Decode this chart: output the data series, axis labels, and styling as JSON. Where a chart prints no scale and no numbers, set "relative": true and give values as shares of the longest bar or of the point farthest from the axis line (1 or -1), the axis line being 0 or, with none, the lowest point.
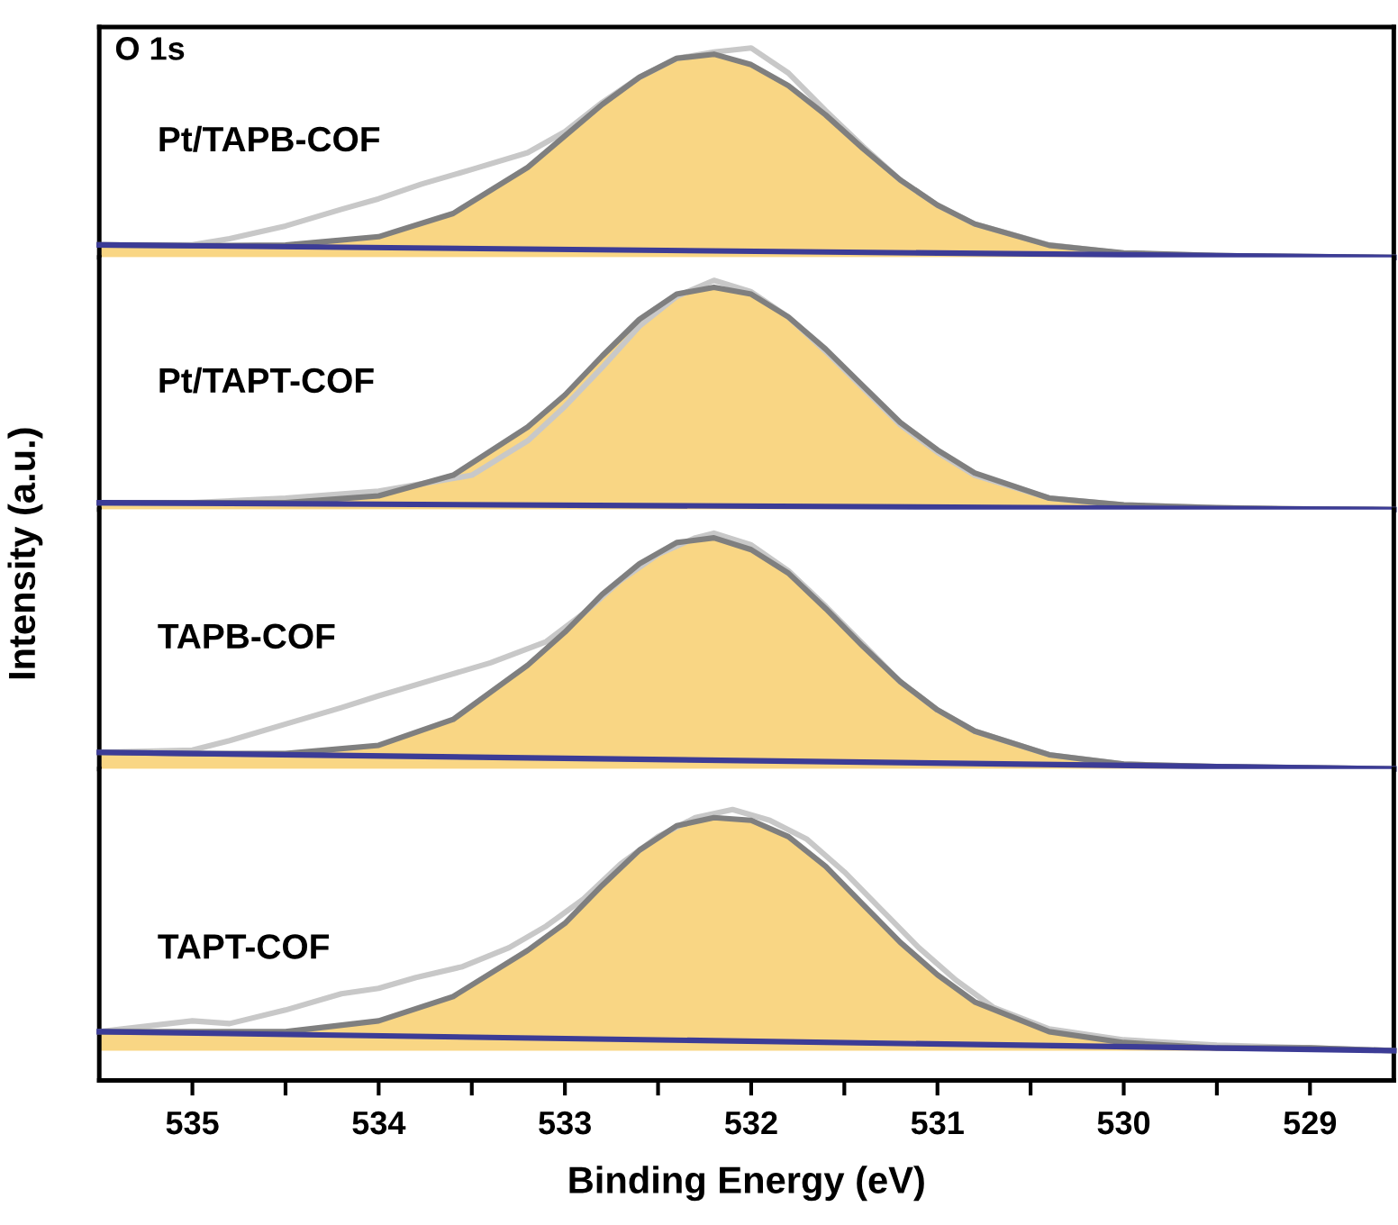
{
  "chart_data": [
    {
      "type": "line",
      "relative": true,
      "ylabel": "Intensity (a.u.)",
      "annotations": [
        "O 1s",
        "Pt/TAPB-COF"
      ],
      "xlim": [
        535.5,
        528.55
      ],
      "xticks": [
        535,
        534,
        533,
        532,
        531,
        530,
        529
      ],
      "tick_labels": false,
      "x": [
        535.5,
        535,
        534.5,
        534,
        533.6,
        533.2,
        533,
        532.8,
        532.6,
        532.4,
        532.2,
        532,
        531.8,
        531.6,
        531.4,
        531.2,
        531,
        530.8,
        530.4,
        530,
        529.5,
        529,
        528.55
      ],
      "series": [
        {
          "color": "#c8c8c8",
          "x": [
            535.5,
            535,
            534.8,
            534.5,
            534.2,
            534,
            533.77,
            533.5,
            533.2,
            533,
            532.8,
            532.6,
            532.4,
            532.2,
            532,
            531.8,
            531.6,
            531.4,
            531.2,
            531,
            530.8,
            530.4,
            530,
            529.5,
            529,
            528.55
          ],
          "values": [
            0.06,
            0.06,
            0.09,
            0.15,
            0.23,
            0.28,
            0.35,
            0.42,
            0.5,
            0.6,
            0.74,
            0.86,
            0.95,
            0.98,
            1.0,
            0.88,
            0.7,
            0.53,
            0.37,
            0.25,
            0.16,
            0.06,
            0.02,
            0.01,
            0.0,
            0.0
          ]
        },
        {
          "type": "area",
          "color": "#f8cf6e",
          "values": [
            0.06,
            0.056,
            0.059,
            0.099,
            0.21,
            0.43,
            0.58,
            0.73,
            0.86,
            0.95,
            0.97,
            0.92,
            0.82,
            0.68,
            0.52,
            0.37,
            0.25,
            0.16,
            0.058,
            0.022,
            0.009,
            0.004,
            0.0
          ]
        },
        {
          "color": "#3c3c96",
          "x": [
            535.5,
            528.55
          ],
          "values": [
            0.06,
            0.0
          ]
        }
      ]
    },
    {
      "type": "line",
      "relative": true,
      "annotations": [
        "Pt/TAPT-COF"
      ],
      "xlim": [
        535.5,
        528.55
      ],
      "xticks": [
        535,
        534,
        533,
        532,
        531,
        530,
        529
      ],
      "tick_labels": false,
      "x": [
        535.5,
        535,
        534.5,
        534,
        533.6,
        533.2,
        533,
        532.8,
        532.6,
        532.4,
        532.2,
        532,
        531.8,
        531.6,
        531.4,
        531.2,
        531,
        530.8,
        530.4,
        530,
        529.5,
        529,
        528.55
      ],
      "series": [
        {
          "color": "#c8c8c8",
          "x": [
            535.5,
            535,
            534.5,
            534,
            533.5,
            533.2,
            533,
            532.8,
            532.6,
            532.4,
            532.2,
            532,
            531.8,
            531.6,
            531.4,
            531.2,
            531,
            530.8,
            530.4,
            530,
            529.5,
            529,
            528.55
          ],
          "values": [
            0.03,
            0.03,
            0.05,
            0.08,
            0.15,
            0.3,
            0.45,
            0.62,
            0.8,
            0.93,
            1.0,
            0.95,
            0.84,
            0.69,
            0.53,
            0.37,
            0.25,
            0.15,
            0.05,
            0.02,
            0.01,
            0.0,
            0.0
          ]
        },
        {
          "type": "area",
          "color": "#f8cf6e",
          "values": [
            0.03,
            0.03,
            0.03,
            0.06,
            0.15,
            0.36,
            0.5,
            0.67,
            0.83,
            0.94,
            0.97,
            0.94,
            0.84,
            0.7,
            0.54,
            0.38,
            0.26,
            0.16,
            0.05,
            0.02,
            0.008,
            0.003,
            0.0
          ]
        },
        {
          "color": "#3c3c96",
          "x": [
            535.5,
            528.55
          ],
          "values": [
            0.03,
            0.0
          ]
        }
      ]
    },
    {
      "type": "line",
      "relative": true,
      "annotations": [
        "TAPB-COF"
      ],
      "xlim": [
        535.5,
        528.55
      ],
      "xticks": [
        535,
        534,
        533,
        532,
        531,
        530,
        529
      ],
      "tick_labels": false,
      "x": [
        535.5,
        535,
        534.5,
        534,
        533.6,
        533.2,
        533,
        532.8,
        532.6,
        532.4,
        532.2,
        532,
        531.8,
        531.6,
        531.4,
        531.2,
        531,
        530.8,
        530.4,
        530,
        529.5,
        529,
        528.55
      ],
      "series": [
        {
          "color": "#c8c8c8",
          "x": [
            535.5,
            535,
            534.8,
            534.5,
            534.2,
            534,
            533.7,
            533.4,
            533.1,
            532.9,
            532.7,
            532.5,
            532.3,
            532.2,
            532,
            531.8,
            531.6,
            531.4,
            531.2,
            531,
            530.8,
            530.4,
            530,
            529.5,
            529,
            528.55
          ],
          "values": [
            0.07,
            0.08,
            0.12,
            0.19,
            0.26,
            0.31,
            0.38,
            0.45,
            0.54,
            0.66,
            0.8,
            0.91,
            0.98,
            1.0,
            0.95,
            0.84,
            0.69,
            0.53,
            0.37,
            0.25,
            0.16,
            0.06,
            0.02,
            0.01,
            0.0,
            0.0
          ]
        },
        {
          "type": "area",
          "color": "#f8cf6e",
          "values": [
            0.07,
            0.065,
            0.065,
            0.1,
            0.21,
            0.44,
            0.58,
            0.74,
            0.87,
            0.96,
            0.98,
            0.93,
            0.83,
            0.68,
            0.52,
            0.37,
            0.25,
            0.16,
            0.06,
            0.02,
            0.01,
            0.005,
            0.0
          ]
        },
        {
          "color": "#3c3c96",
          "x": [
            535.5,
            528.55
          ],
          "values": [
            0.07,
            0.0
          ]
        }
      ]
    },
    {
      "type": "line",
      "relative": true,
      "xlabel": "Binding Energy (eV)",
      "annotations": [
        "TAPT-COF"
      ],
      "xlim": [
        535.5,
        528.55
      ],
      "xticks": [
        535,
        {
          "value": 534.5,
          "label": null
        },
        534,
        {
          "value": 533.5,
          "label": null
        },
        533,
        {
          "value": 532.5,
          "label": null
        },
        532,
        {
          "value": 531.5,
          "label": null
        },
        531,
        {
          "value": 530.5,
          "label": null
        },
        530,
        {
          "value": 529.5,
          "label": null
        },
        529
      ],
      "tick_labels": "x",
      "x": [
        535.5,
        535,
        534.5,
        534,
        533.6,
        533.2,
        533,
        532.8,
        532.6,
        532.4,
        532.2,
        532,
        531.8,
        531.6,
        531.4,
        531.2,
        531,
        530.8,
        530.4,
        530,
        529.5,
        529,
        528.55
      ],
      "series": [
        {
          "color": "#c8c8c8",
          "x": [
            535.5,
            535,
            534.8,
            534.5,
            534.2,
            534,
            533.8,
            533.55,
            533.3,
            533.1,
            532.9,
            532.7,
            532.5,
            532.3,
            532.1,
            531.9,
            531.7,
            531.5,
            531.3,
            531.1,
            530.9,
            530.7,
            530.4,
            530,
            529.5,
            529,
            528.55
          ],
          "values": [
            0.18,
            0.22,
            0.21,
            0.26,
            0.32,
            0.34,
            0.38,
            0.42,
            0.49,
            0.57,
            0.67,
            0.8,
            0.9,
            0.97,
            1.0,
            0.96,
            0.89,
            0.77,
            0.63,
            0.49,
            0.37,
            0.27,
            0.19,
            0.15,
            0.13,
            0.12,
            0.11
          ]
        },
        {
          "type": "area",
          "color": "#f8cf6e",
          "values": [
            0.18,
            0.18,
            0.18,
            0.22,
            0.31,
            0.48,
            0.58,
            0.72,
            0.85,
            0.94,
            0.97,
            0.96,
            0.9,
            0.79,
            0.65,
            0.51,
            0.39,
            0.29,
            0.18,
            0.14,
            0.12,
            0.12,
            0.11
          ]
        },
        {
          "color": "#3c3c96",
          "x": [
            535.5,
            528.55
          ],
          "values": [
            0.18,
            0.11
          ]
        }
      ]
    }
  ]
}
